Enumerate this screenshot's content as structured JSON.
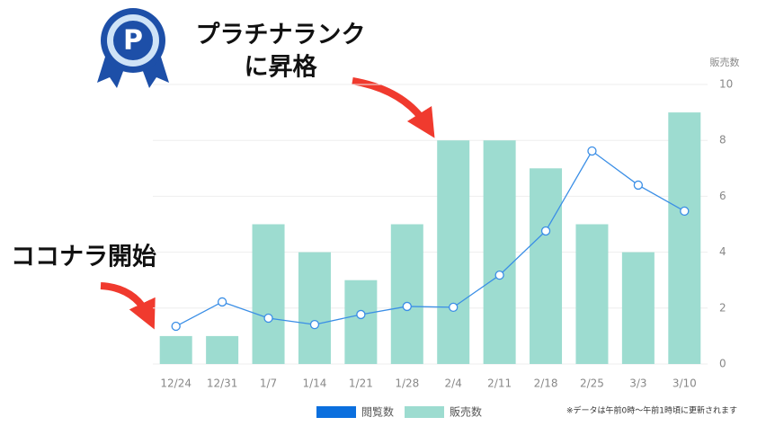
{
  "chart_data": {
    "type": "bar",
    "categories": [
      "12/24",
      "12/31",
      "1/7",
      "1/14",
      "1/21",
      "1/28",
      "2/4",
      "2/11",
      "2/18",
      "2/25",
      "3/3",
      "3/10"
    ],
    "series": [
      {
        "name": "閲覧数",
        "type": "line",
        "color": "#3a8ee6",
        "legend_color": "#0b6fde",
        "values": [
          1.35,
          2.22,
          1.64,
          1.41,
          1.77,
          2.06,
          2.03,
          3.18,
          4.76,
          7.62,
          6.4,
          5.47
        ]
      },
      {
        "name": "販売数",
        "type": "bar",
        "color": "#9ddcd0",
        "values": [
          1,
          1,
          5,
          4,
          3,
          5,
          8,
          8,
          7,
          5,
          4,
          9
        ]
      }
    ],
    "y_axis_label": "販売数",
    "ylim": [
      0,
      10
    ],
    "yticks": [
      0,
      2,
      4,
      6,
      8,
      10
    ],
    "grid": true,
    "note": "※データは午前0時〜午前1時頃に更新されます",
    "annotations": [
      {
        "lines": [
          "プラチナランク",
          "に昇格"
        ]
      },
      {
        "lines": [
          "ココナラ開始"
        ]
      }
    ]
  }
}
